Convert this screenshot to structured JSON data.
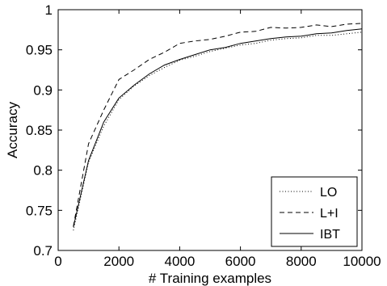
{
  "chart_data": {
    "type": "line",
    "title": "",
    "xlabel": "# Training examples",
    "ylabel": "Accuracy",
    "xlim": [
      0,
      10000
    ],
    "ylim": [
      0.7,
      1.0
    ],
    "xticks": [
      0,
      2000,
      4000,
      6000,
      8000,
      10000
    ],
    "xtick_labels": [
      "0",
      "2000",
      "4000",
      "6000",
      "8000",
      "10000"
    ],
    "yticks": [
      0.7,
      0.75,
      0.8,
      0.85,
      0.9,
      0.95,
      1.0
    ],
    "ytick_labels": [
      "0.7",
      "0.75",
      "0.8",
      "0.85",
      "0.9",
      "0.95",
      "1"
    ],
    "grid": false,
    "legend_position": "bottom-right",
    "x": [
      500,
      1000,
      1500,
      2000,
      2500,
      3000,
      3500,
      4000,
      4500,
      5000,
      5500,
      6000,
      6500,
      7000,
      7500,
      8000,
      8500,
      9000,
      9500,
      10000
    ],
    "series": [
      {
        "name": "LO",
        "style": "dotted",
        "color": "#000000",
        "values": [
          0.725,
          0.81,
          0.855,
          0.888,
          0.905,
          0.918,
          0.928,
          0.937,
          0.942,
          0.948,
          0.952,
          0.956,
          0.958,
          0.962,
          0.964,
          0.965,
          0.968,
          0.968,
          0.97,
          0.972
        ]
      },
      {
        "name": "L+I",
        "style": "dashed",
        "color": "#000000",
        "values": [
          0.73,
          0.833,
          0.875,
          0.913,
          0.925,
          0.938,
          0.947,
          0.958,
          0.961,
          0.963,
          0.967,
          0.972,
          0.973,
          0.978,
          0.977,
          0.978,
          0.981,
          0.979,
          0.982,
          0.983
        ]
      },
      {
        "name": "IBT",
        "style": "solid",
        "color": "#000000",
        "values": [
          0.729,
          0.812,
          0.86,
          0.89,
          0.906,
          0.92,
          0.931,
          0.938,
          0.944,
          0.95,
          0.953,
          0.958,
          0.961,
          0.964,
          0.966,
          0.967,
          0.97,
          0.971,
          0.974,
          0.976
        ]
      }
    ]
  }
}
